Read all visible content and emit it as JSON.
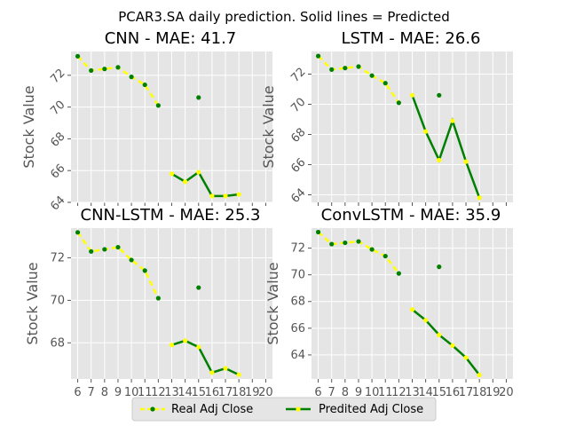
{
  "figure": {
    "suptitle": "PCAR3.SA daily prediction. Solid lines = Predicted"
  },
  "legend": {
    "real_label": "Real Adj Close",
    "pred_label": "Predited Adj Close",
    "placement": "bottom-center"
  },
  "colors": {
    "background": "#e5e5e5",
    "grid": "#ffffff",
    "real_line": "#ffff00",
    "real_marker": "#008000",
    "pred_line": "#008000",
    "pred_marker": "#ffff00",
    "tick_text": "#555555"
  },
  "chart_data": [
    {
      "type": "line",
      "title": "CNN - MAE: 41.7",
      "xlabel": "",
      "ylabel": "Stock Value",
      "xlim": [
        5.5,
        20.5
      ],
      "ylim": [
        64.0,
        73.5
      ],
      "xticks": [
        6,
        7,
        8,
        9,
        10,
        11,
        12,
        13,
        14,
        15,
        16,
        17,
        18,
        19,
        20
      ],
      "show_xtick_labels": false,
      "yticks": [
        64,
        66,
        68,
        70,
        72
      ],
      "ytick_rotation": 45,
      "grid": true,
      "series": [
        {
          "name": "Real Adj Close",
          "x": [
            6,
            7,
            8,
            9,
            10,
            11,
            12,
            13,
            14,
            15
          ],
          "values": [
            73.2,
            72.3,
            72.4,
            72.5,
            71.9,
            71.4,
            70.1,
            null,
            null,
            70.6
          ]
        },
        {
          "name": "Predited Adj Close",
          "x": [
            13,
            14,
            15,
            16,
            17,
            18
          ],
          "values": [
            65.8,
            65.3,
            65.9,
            64.4,
            64.4,
            64.5
          ]
        }
      ]
    },
    {
      "type": "line",
      "title": "LSTM - MAE: 26.6",
      "xlabel": "",
      "ylabel": "Stock Value",
      "xlim": [
        5.5,
        20.5
      ],
      "ylim": [
        63.5,
        73.5
      ],
      "xticks": [
        6,
        7,
        8,
        9,
        10,
        11,
        12,
        13,
        14,
        15,
        16,
        17,
        18,
        19,
        20
      ],
      "show_xtick_labels": false,
      "yticks": [
        64,
        66,
        68,
        70,
        72
      ],
      "ytick_rotation": 45,
      "grid": true,
      "series": [
        {
          "name": "Real Adj Close",
          "x": [
            6,
            7,
            8,
            9,
            10,
            11,
            12,
            13,
            14,
            15
          ],
          "values": [
            73.2,
            72.3,
            72.4,
            72.5,
            71.9,
            71.4,
            70.1,
            null,
            null,
            70.6
          ]
        },
        {
          "name": "Predited Adj Close",
          "x": [
            13,
            14,
            15,
            16,
            17,
            18
          ],
          "values": [
            70.6,
            68.2,
            66.3,
            68.9,
            66.2,
            63.8
          ]
        }
      ]
    },
    {
      "type": "line",
      "title": "CNN-LSTM - MAE: 25.3",
      "xlabel": "",
      "ylabel": "Stock Value",
      "xlim": [
        5.5,
        20.5
      ],
      "ylim": [
        66.3,
        73.4
      ],
      "xticks": [
        6,
        7,
        8,
        9,
        10,
        11,
        12,
        13,
        14,
        15,
        16,
        17,
        18,
        19,
        20
      ],
      "show_xtick_labels": true,
      "yticks": [
        68,
        70,
        72
      ],
      "ytick_rotation": 0,
      "grid": true,
      "series": [
        {
          "name": "Real Adj Close",
          "x": [
            6,
            7,
            8,
            9,
            10,
            11,
            12,
            13,
            14,
            15
          ],
          "values": [
            73.2,
            72.3,
            72.4,
            72.5,
            71.9,
            71.4,
            70.1,
            null,
            null,
            70.6
          ]
        },
        {
          "name": "Predited Adj Close",
          "x": [
            13,
            14,
            15,
            16,
            17,
            18
          ],
          "values": [
            67.9,
            68.1,
            67.8,
            66.6,
            66.8,
            66.5
          ]
        }
      ]
    },
    {
      "type": "line",
      "title": "ConvLSTM - MAE: 35.9",
      "xlabel": "",
      "ylabel": "Stock Value",
      "xlim": [
        5.5,
        20.5
      ],
      "ylim": [
        62.2,
        73.5
      ],
      "xticks": [
        6,
        7,
        8,
        9,
        10,
        11,
        12,
        13,
        14,
        15,
        16,
        17,
        18,
        19,
        20
      ],
      "show_xtick_labels": true,
      "yticks": [
        64,
        66,
        68,
        70,
        72
      ],
      "ytick_rotation": 0,
      "grid": true,
      "series": [
        {
          "name": "Real Adj Close",
          "x": [
            6,
            7,
            8,
            9,
            10,
            11,
            12,
            13,
            14,
            15
          ],
          "values": [
            73.2,
            72.3,
            72.4,
            72.5,
            71.9,
            71.4,
            70.1,
            null,
            null,
            70.6
          ]
        },
        {
          "name": "Predited Adj Close",
          "x": [
            13,
            14,
            15,
            16,
            17,
            18
          ],
          "values": [
            67.4,
            66.6,
            65.5,
            64.7,
            63.8,
            62.5
          ]
        }
      ]
    }
  ]
}
